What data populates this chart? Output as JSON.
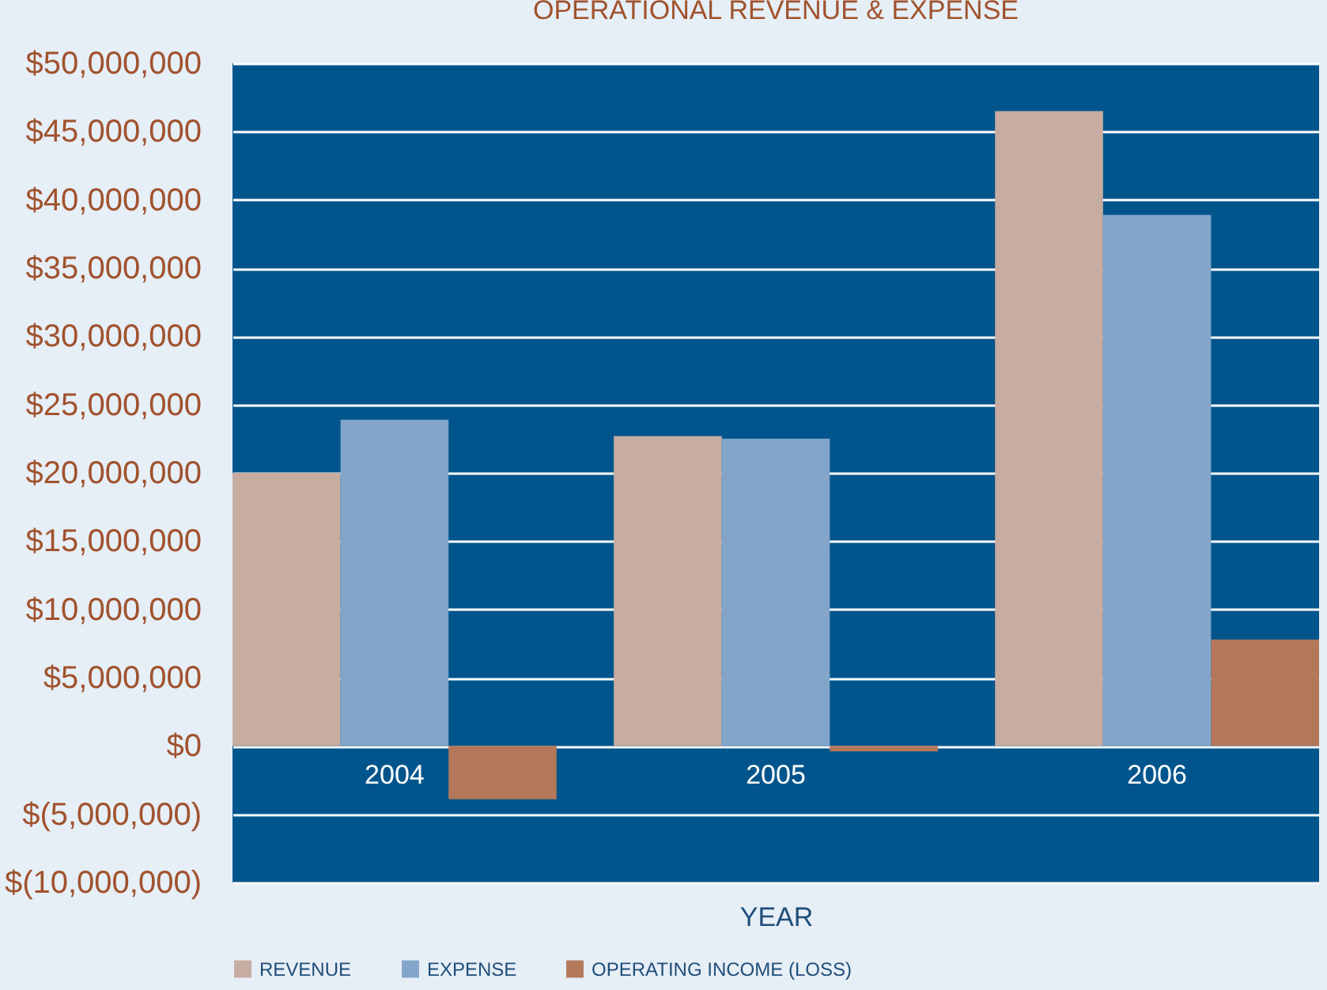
{
  "chart_data": {
    "type": "bar",
    "title": "OPERATIONAL REVENUE & EXPENSE",
    "xlabel": "YEAR",
    "categories": [
      "2004",
      "2005",
      "2006"
    ],
    "series": [
      {
        "name": "REVENUE",
        "color": "#c7aca2",
        "values": [
          20000000,
          22700000,
          46500000
        ]
      },
      {
        "name": "EXPENSE",
        "color": "#82a5c9",
        "values": [
          23900000,
          22500000,
          38900000
        ]
      },
      {
        "name": "OPERATING INCOME (LOSS)",
        "color": "#b3785a",
        "values": [
          -3900000,
          -400000,
          7800000
        ]
      }
    ],
    "ylim": [
      -10000000,
      50000000
    ],
    "yticks": [
      {
        "value": -10000000,
        "label": "$(10,000,000)"
      },
      {
        "value": -5000000,
        "label": "$(5,000,000)"
      },
      {
        "value": 0,
        "label": "$0"
      },
      {
        "value": 5000000,
        "label": "$5,000,000"
      },
      {
        "value": 10000000,
        "label": "$10,000,000"
      },
      {
        "value": 15000000,
        "label": "$15,000,000"
      },
      {
        "value": 20000000,
        "label": "$20,000,000"
      },
      {
        "value": 25000000,
        "label": "$25,000,000"
      },
      {
        "value": 30000000,
        "label": "$30,000,000"
      },
      {
        "value": 35000000,
        "label": "$35,000,000"
      },
      {
        "value": 40000000,
        "label": "$40,000,000"
      },
      {
        "value": 45000000,
        "label": "$45,000,000"
      },
      {
        "value": 50000000,
        "label": "$50,000,000"
      }
    ],
    "grid": "y",
    "legend": "bottom"
  }
}
